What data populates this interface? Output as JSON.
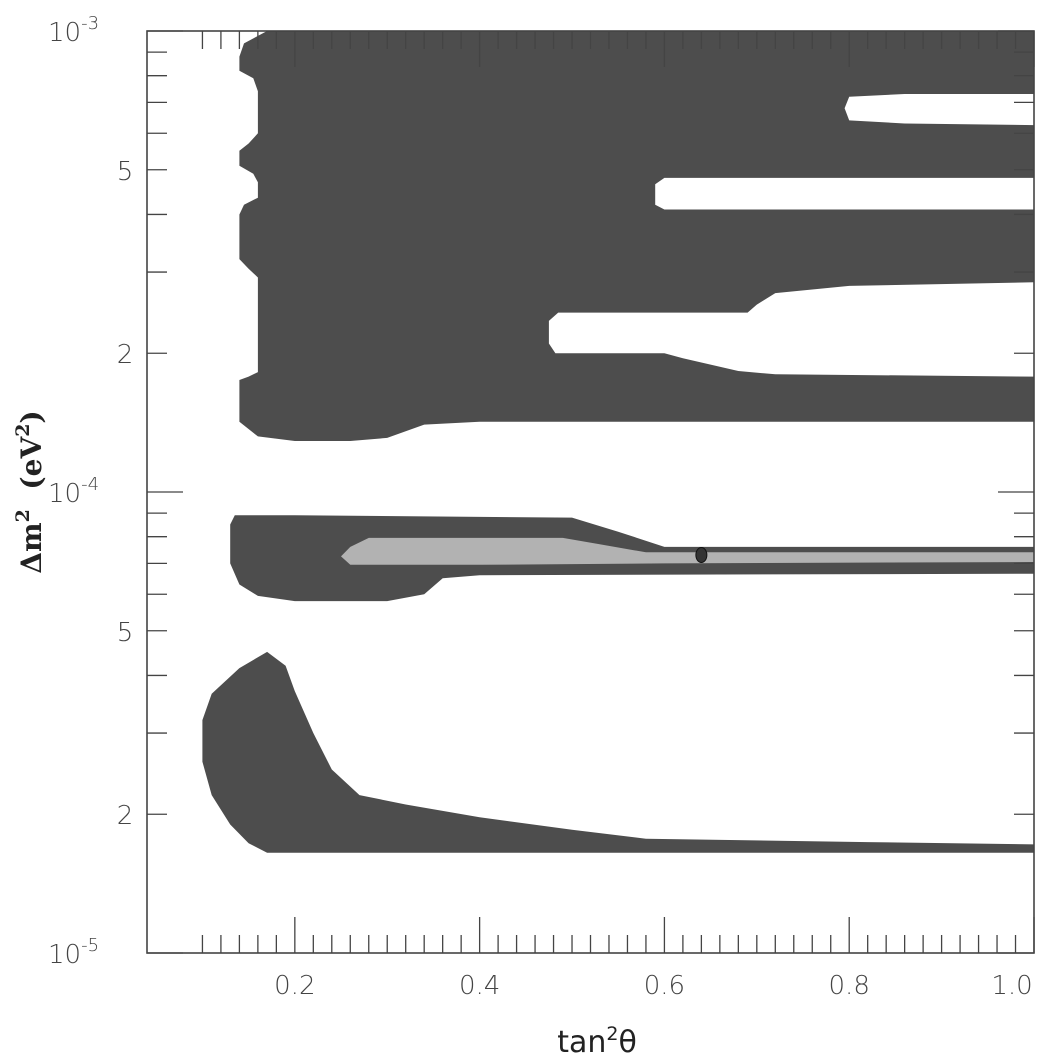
{
  "chart_data": {
    "type": "contour",
    "title": "",
    "xlabel": {
      "base": "tan",
      "sup": "2",
      "tail": "θ"
    },
    "ylabel": {
      "prefix": "Δm",
      "sup1": "2",
      "mid": "  (eV",
      "sup2": "2",
      "tail": ")"
    },
    "xlim": [
      0.04,
      1.0
    ],
    "ylim": [
      1e-05,
      0.001
    ],
    "yscale": "log",
    "x_ticks_major": [
      0.2,
      0.4,
      0.6,
      0.8,
      1.0
    ],
    "x_tick_labels": [
      "0.2",
      "0.4",
      "0.6",
      "0.8",
      "1.0"
    ],
    "x_ticks_minor": [
      0.1,
      0.12,
      0.14,
      0.16,
      0.18,
      0.22,
      0.24,
      0.26,
      0.28,
      0.3,
      0.32,
      0.34,
      0.36,
      0.38,
      0.42,
      0.44,
      0.46,
      0.48,
      0.5,
      0.52,
      0.54,
      0.56,
      0.58,
      0.62,
      0.64,
      0.66,
      0.68,
      0.7,
      0.72,
      0.74,
      0.76,
      0.78,
      0.82,
      0.84,
      0.86,
      0.88,
      0.9,
      0.92,
      0.94,
      0.96,
      0.98
    ],
    "y_ticks_major": [
      1e-05,
      0.0001,
      0.001
    ],
    "y_ticks_minor": [
      2e-05,
      3e-05,
      4e-05,
      5e-05,
      6e-05,
      7e-05,
      8e-05,
      9e-05,
      0.0002,
      0.0003,
      0.0004,
      0.0005,
      0.0006,
      0.0007,
      0.0008,
      0.0009
    ],
    "y_tick_labels": [
      {
        "value": 0.001,
        "base": "10",
        "exp": "-3"
      },
      {
        "value": 0.0005,
        "base": "5",
        "exp": ""
      },
      {
        "value": 0.0002,
        "base": "2",
        "exp": ""
      },
      {
        "value": 0.0001,
        "base": "10",
        "exp": "-4"
      },
      {
        "value": 5e-05,
        "base": "5",
        "exp": ""
      },
      {
        "value": 2e-05,
        "base": "2",
        "exp": ""
      },
      {
        "value": 1e-05,
        "base": "10",
        "exp": "-5"
      }
    ],
    "colors": {
      "outer_region": "#4d4d4d",
      "inner_region": "#b2b2b2",
      "axis": "#444444",
      "best_fit": "#333333"
    },
    "best_fit_point": {
      "x": 0.64,
      "y": 7.3e-05
    },
    "regions": [
      {
        "level": "outer",
        "points": [
          [
            0.17,
            0.001
          ],
          [
            0.145,
            0.00094
          ],
          [
            0.14,
            0.00088
          ],
          [
            0.14,
            0.00082
          ],
          [
            0.155,
            0.00079
          ],
          [
            0.16,
            0.00074
          ],
          [
            0.16,
            0.0006
          ],
          [
            0.15,
            0.00057
          ],
          [
            0.14,
            0.00055
          ],
          [
            0.14,
            0.00051
          ],
          [
            0.155,
            0.00049
          ],
          [
            0.16,
            0.00047
          ],
          [
            0.16,
            0.000435
          ],
          [
            0.145,
            0.00042
          ],
          [
            0.14,
            0.0004
          ],
          [
            0.14,
            0.00032
          ],
          [
            0.15,
            0.000305
          ],
          [
            0.16,
            0.000292
          ],
          [
            0.16,
            0.000182
          ],
          [
            0.15,
            0.000178
          ],
          [
            0.14,
            0.000175
          ],
          [
            0.14,
            0.000142
          ],
          [
            0.16,
            0.000132
          ],
          [
            0.2,
            0.000129
          ],
          [
            0.26,
            0.000129
          ],
          [
            0.3,
            0.000131
          ],
          [
            0.34,
            0.00014
          ],
          [
            0.4,
            0.000142
          ],
          [
            1.0,
            0.000142
          ],
          [
            1.0,
            0.000178
          ],
          [
            0.72,
            0.00018
          ],
          [
            0.68,
            0.000183
          ],
          [
            0.62,
            0.000195
          ],
          [
            0.6,
            0.0002
          ],
          [
            0.482,
            0.0002
          ],
          [
            0.475,
            0.00021
          ],
          [
            0.475,
            0.000235
          ],
          [
            0.485,
            0.000245
          ],
          [
            0.69,
            0.000245
          ],
          [
            0.7,
            0.000255
          ],
          [
            0.72,
            0.00027
          ],
          [
            0.8,
            0.00028
          ],
          [
            1.0,
            0.000285
          ],
          [
            1.0,
            0.00041
          ],
          [
            0.6,
            0.00041
          ],
          [
            0.59,
            0.00042
          ],
          [
            0.59,
            0.000465
          ],
          [
            0.6,
            0.00048
          ],
          [
            1.0,
            0.00048
          ],
          [
            1.0,
            0.000625
          ],
          [
            0.86,
            0.00063
          ],
          [
            0.8,
            0.00064
          ],
          [
            0.795,
            0.00068
          ],
          [
            0.8,
            0.00072
          ],
          [
            0.86,
            0.00073
          ],
          [
            1.0,
            0.00073
          ],
          [
            1.0,
            0.001
          ]
        ]
      },
      {
        "level": "outer",
        "points": [
          [
            0.135,
            8.9e-05
          ],
          [
            0.2,
            8.9e-05
          ],
          [
            0.5,
            8.8e-05
          ],
          [
            0.55,
            8.2e-05
          ],
          [
            0.6,
            7.6e-05
          ],
          [
            1.0,
            7.6e-05
          ],
          [
            1.0,
            6.65e-05
          ],
          [
            0.4,
            6.6e-05
          ],
          [
            0.36,
            6.5e-05
          ],
          [
            0.34,
            6e-05
          ],
          [
            0.3,
            5.8e-05
          ],
          [
            0.2,
            5.8e-05
          ],
          [
            0.16,
            5.95e-05
          ],
          [
            0.14,
            6.3e-05
          ],
          [
            0.13,
            7e-05
          ],
          [
            0.13,
            8.5e-05
          ]
        ]
      },
      {
        "level": "outer",
        "points": [
          [
            0.17,
            4.5e-05
          ],
          [
            0.14,
            4.15e-05
          ],
          [
            0.11,
            3.65e-05
          ],
          [
            0.1,
            3.2e-05
          ],
          [
            0.1,
            2.6e-05
          ],
          [
            0.11,
            2.2e-05
          ],
          [
            0.13,
            1.9e-05
          ],
          [
            0.15,
            1.73e-05
          ],
          [
            0.17,
            1.65e-05
          ],
          [
            0.3,
            1.65e-05
          ],
          [
            0.6,
            1.65e-05
          ],
          [
            1.0,
            1.65e-05
          ],
          [
            1.0,
            1.72e-05
          ],
          [
            0.82,
            1.74e-05
          ],
          [
            0.58,
            1.77e-05
          ],
          [
            0.5,
            1.85e-05
          ],
          [
            0.4,
            1.97e-05
          ],
          [
            0.32,
            2.1e-05
          ],
          [
            0.27,
            2.2e-05
          ],
          [
            0.24,
            2.5e-05
          ],
          [
            0.22,
            3e-05
          ],
          [
            0.2,
            3.7e-05
          ],
          [
            0.19,
            4.2e-05
          ]
        ]
      },
      {
        "level": "inner",
        "points": [
          [
            0.28,
            7.95e-05
          ],
          [
            0.4,
            7.95e-05
          ],
          [
            0.49,
            7.95e-05
          ],
          [
            0.53,
            7.7e-05
          ],
          [
            0.58,
            7.4e-05
          ],
          [
            1.0,
            7.4e-05
          ],
          [
            1.0,
            7.05e-05
          ],
          [
            0.6,
            7e-05
          ],
          [
            0.4,
            6.95e-05
          ],
          [
            0.26,
            6.95e-05
          ],
          [
            0.25,
            7.25e-05
          ],
          [
            0.26,
            7.6e-05
          ]
        ]
      }
    ]
  }
}
